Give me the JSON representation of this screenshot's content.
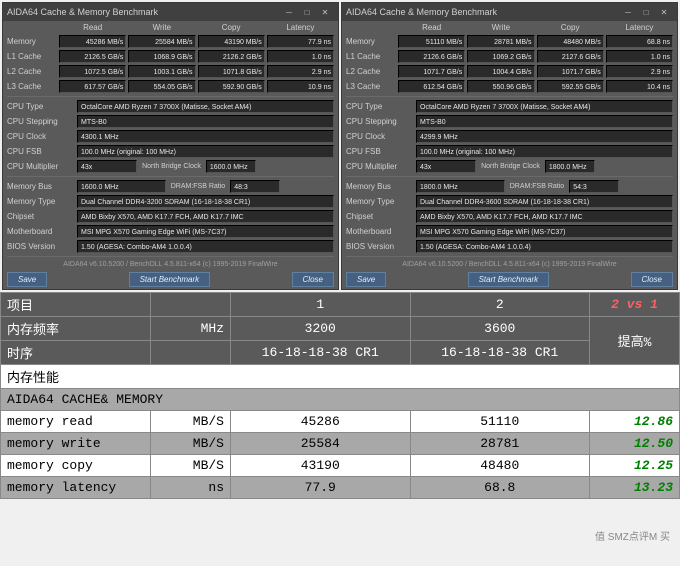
{
  "shared": {
    "title": "AIDA64 Cache & Memory Benchmark",
    "headers": [
      "Read",
      "Write",
      "Copy",
      "Latency"
    ],
    "rows": [
      "Memory",
      "L1 Cache",
      "L2 Cache",
      "L3 Cache"
    ],
    "info_labels": {
      "cpu_type": "CPU Type",
      "cpu_stepping": "CPU Stepping",
      "cpu_clock": "CPU Clock",
      "cpu_fsb": "CPU FSB",
      "cpu_multiplier": "CPU Multiplier",
      "nb_clock": "North Bridge Clock",
      "mem_bus": "Memory Bus",
      "fsb_ratio": "DRAM:FSB Ratio",
      "mem_type": "Memory Type",
      "chipset": "Chipset",
      "motherboard": "Motherboard",
      "bios": "BIOS Version"
    },
    "footer": "AIDA64 v6.10.5200 / BenchDLL 4.5.811-x64 (c) 1995-2019 FinalWire",
    "buttons": {
      "save": "Save",
      "start": "Start Benchmark",
      "close": "Close"
    }
  },
  "left": {
    "mem": [
      [
        "45286 MB/s",
        "25584 MB/s",
        "43190 MB/s",
        "77.9 ns"
      ],
      [
        "2126.5 GB/s",
        "1068.9 GB/s",
        "2126.2 GB/s",
        "1.0 ns"
      ],
      [
        "1072.5 GB/s",
        "1003.1 GB/s",
        "1071.8 GB/s",
        "2.9 ns"
      ],
      [
        "617.57 GB/s",
        "554.05 GB/s",
        "592.90 GB/s",
        "10.9 ns"
      ]
    ],
    "info": {
      "cpu_type": "OctalCore AMD Ryzen 7 3700X (Matisse, Socket AM4)",
      "cpu_stepping": "MTS-B0",
      "cpu_clock": "4300.1 MHz",
      "cpu_fsb": "100.0 MHz (original: 100 MHz)",
      "cpu_multiplier": "43x",
      "nb_clock": "1600.0 MHz",
      "mem_bus": "1600.0 MHz",
      "fsb_ratio": "48:3",
      "mem_type": "Dual Channel DDR4-3200 SDRAM (16-18-18-38 CR1)",
      "chipset": "AMD Bixby X570, AMD K17.7 FCH, AMD K17.7 IMC",
      "motherboard": "MSI MPG X570 Gaming Edge WiFi (MS-7C37)",
      "bios": "1.50 (AGESA: Combo-AM4 1.0.0.4)"
    }
  },
  "right": {
    "mem": [
      [
        "51110 MB/s",
        "28781 MB/s",
        "48480 MB/s",
        "68.8 ns"
      ],
      [
        "2126.6 GB/s",
        "1069.2 GB/s",
        "2127.6 GB/s",
        "1.0 ns"
      ],
      [
        "1071.7 GB/s",
        "1004.4 GB/s",
        "1071.7 GB/s",
        "2.9 ns"
      ],
      [
        "612.54 GB/s",
        "550.96 GB/s",
        "592.55 GB/s",
        "10.4 ns"
      ]
    ],
    "info": {
      "cpu_type": "OctalCore AMD Ryzen 7 3700X (Matisse, Socket AM4)",
      "cpu_stepping": "MTS-B0",
      "cpu_clock": "4299.9 MHz",
      "cpu_fsb": "100.0 MHz (original: 100 MHz)",
      "cpu_multiplier": "43x",
      "nb_clock": "1800.0 MHz",
      "mem_bus": "1800.0 MHz",
      "fsb_ratio": "54:3",
      "mem_type": "Dual Channel DDR4-3600 SDRAM (16-18-18-38 CR1)",
      "chipset": "AMD Bixby X570, AMD K17.7 FCH, AMD K17.7 IMC",
      "motherboard": "MSI MPG X570 Gaming Edge WiFi (MS-7C37)",
      "bios": "1.50 (AGESA: Combo-AM4 1.0.0.4)"
    }
  },
  "table": {
    "headers": {
      "item": "项目",
      "c1": "1",
      "c2": "2",
      "vs": "2 vs 1"
    },
    "freq": {
      "label": "内存频率",
      "unit": "MHz",
      "v1": "3200",
      "v2": "3600",
      "improve": "提高%"
    },
    "timing": {
      "label": "时序",
      "v1": "16-18-18-38 CR1",
      "v2": "16-18-18-38 CR1"
    },
    "perf": "内存性能",
    "aida": "AIDA64 CACHE& MEMORY",
    "rows": [
      {
        "label": "memory read",
        "unit": "MB/S",
        "v1": "45286",
        "v2": "51110",
        "pct": "12.86"
      },
      {
        "label": "memory write",
        "unit": "MB/S",
        "v1": "25584",
        "v2": "28781",
        "pct": "12.50"
      },
      {
        "label": "memory copy",
        "unit": "MB/S",
        "v1": "43190",
        "v2": "48480",
        "pct": "12.25"
      },
      {
        "label": "memory latency",
        "unit": "ns",
        "v1": "77.9",
        "v2": "68.8",
        "pct": "13.23"
      }
    ]
  },
  "watermark": "值 SMZ点评M 买"
}
